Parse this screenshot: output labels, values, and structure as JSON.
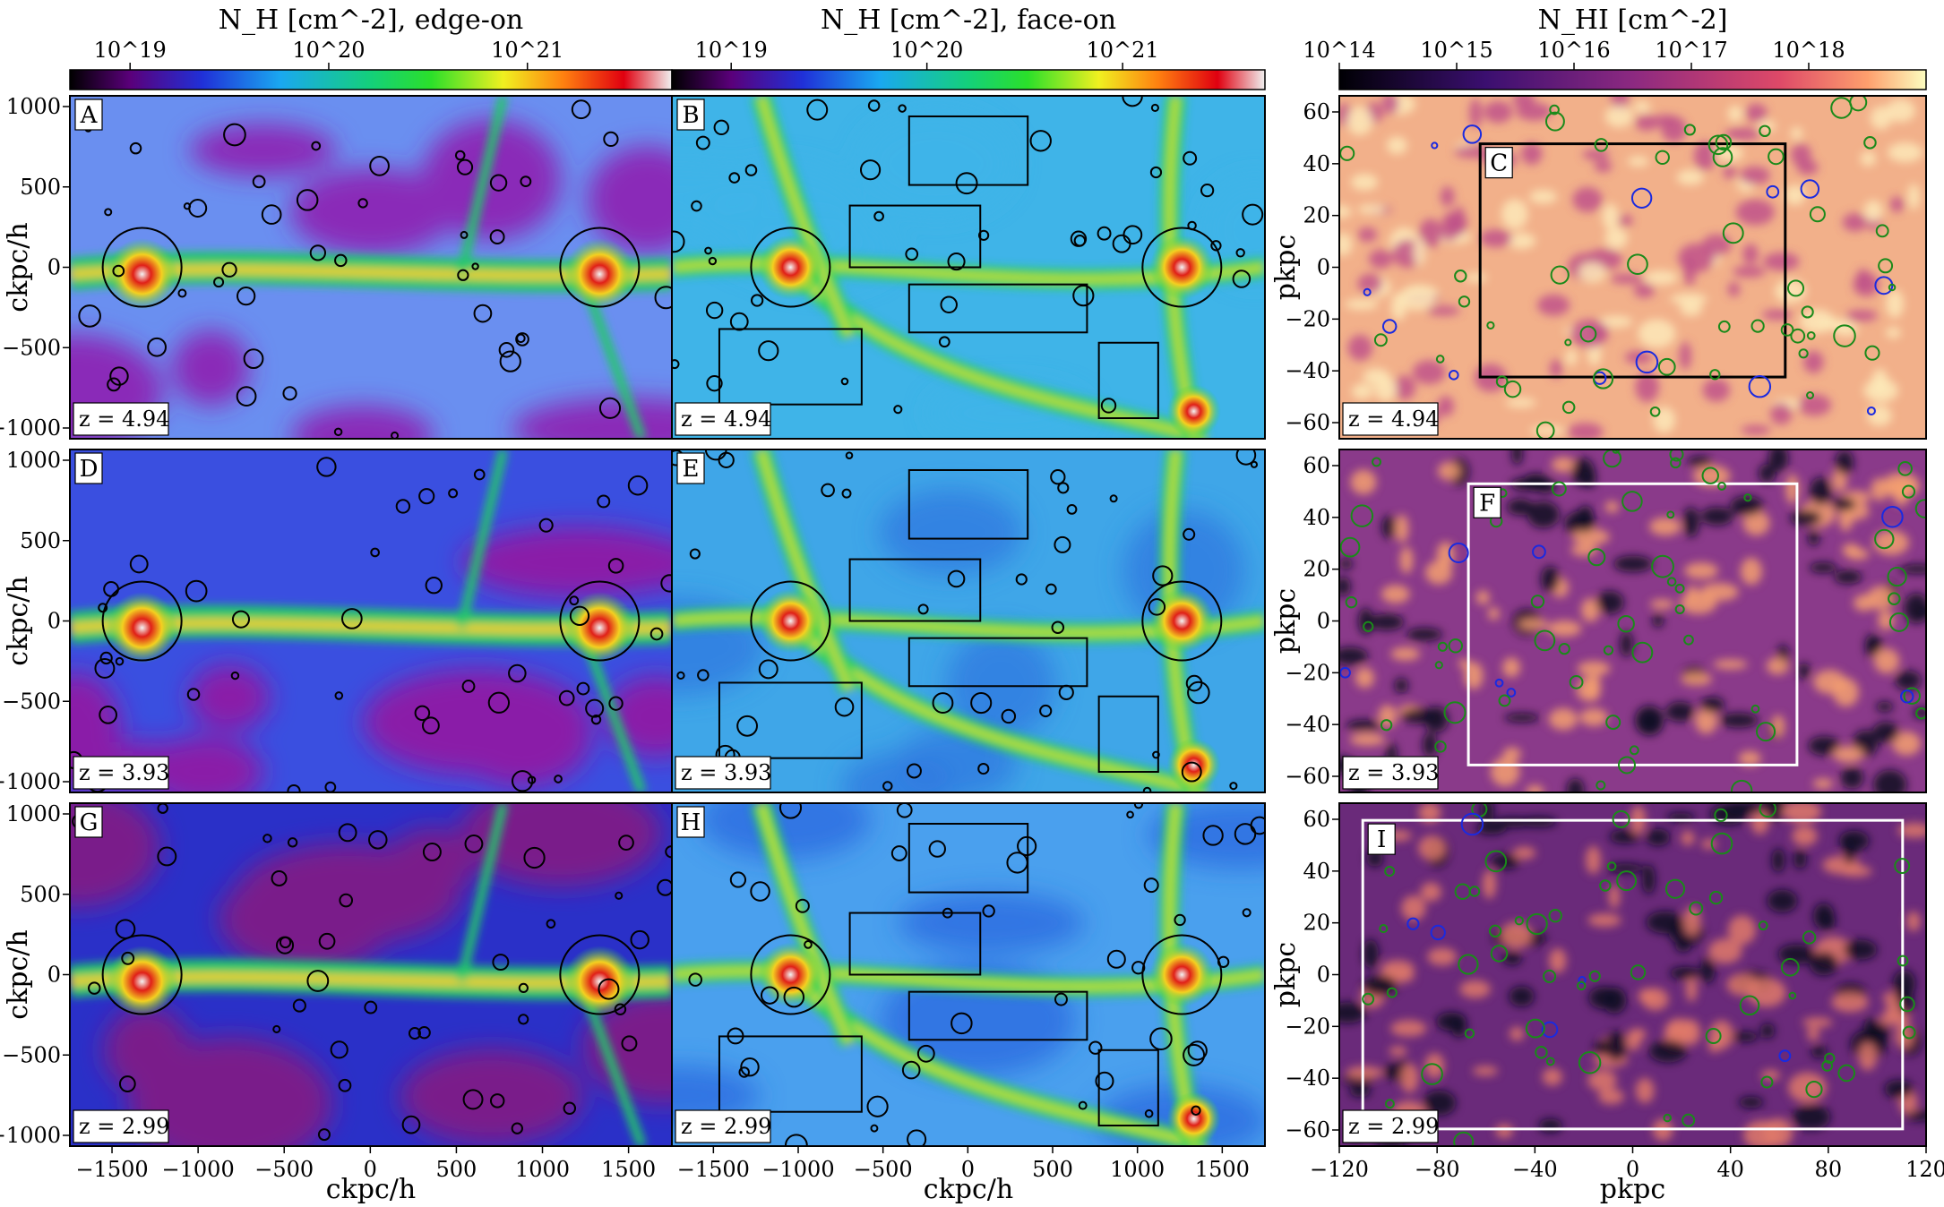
{
  "colorbars": [
    {
      "title": "N_H [cm^-2], edge-on",
      "ticks": [
        "10^19",
        "10^20",
        "10^21"
      ]
    },
    {
      "title": "N_H [cm^-2], face-on",
      "ticks": [
        "10^19",
        "10^20",
        "10^21"
      ]
    },
    {
      "title": "N_HI [cm^-2]",
      "ticks": [
        "10^14",
        "10^15",
        "10^16",
        "10^17",
        "10^18"
      ]
    }
  ],
  "axes": {
    "ckpc_ylabel": "ckpc/h",
    "ckpc_xlabel": "ckpc/h",
    "pkpc_ylabel": "pkpc",
    "pkpc_xlabel": "pkpc",
    "ckpc_xticks": [
      "−1500",
      "−1000",
      "−500",
      "0",
      "500",
      "1000",
      "1500"
    ],
    "ckpc_yticks": [
      "1000",
      "500",
      "0",
      "−500",
      "−1000"
    ],
    "pkpc_xticks": [
      "−120",
      "−80",
      "−40",
      "0",
      "40",
      "80",
      "120"
    ],
    "pkpc_yticks": [
      "60",
      "40",
      "20",
      "0",
      "−20",
      "−40",
      "−60"
    ]
  },
  "panels": [
    {
      "letter": "A",
      "z": "z = 4.94",
      "kind": "edge",
      "colors": {
        "bg": "#6a8ff0",
        "void": "#8a2bb8",
        "fil": "#22c86a"
      }
    },
    {
      "letter": "B",
      "z": "z = 4.94",
      "kind": "face",
      "colors": {
        "bg": "#3fb4e8",
        "void": "#3fb4e8",
        "fil": "#2fd35a"
      }
    },
    {
      "letter": "C",
      "z": "z = 4.94",
      "kind": "hi",
      "colors": {
        "bg": "#f2b08a",
        "void": "#c0528a",
        "fil": "#fde9b8"
      }
    },
    {
      "letter": "D",
      "z": "z = 3.93",
      "kind": "edge",
      "colors": {
        "bg": "#3a4fe0",
        "void": "#8a1fa8",
        "fil": "#22c86a"
      }
    },
    {
      "letter": "E",
      "z": "z = 3.93",
      "kind": "face",
      "colors": {
        "bg": "#3fa6e8",
        "void": "#2f7be0",
        "fil": "#2fd35a"
      }
    },
    {
      "letter": "F",
      "z": "z = 3.93",
      "kind": "hi",
      "colors": {
        "bg": "#8a3a8a",
        "void": "#120a20",
        "fil": "#f5a070"
      }
    },
    {
      "letter": "G",
      "z": "z = 2.99",
      "kind": "edge",
      "colors": {
        "bg": "#2a30c8",
        "void": "#7a1d8a",
        "fil": "#22c86a"
      }
    },
    {
      "letter": "H",
      "z": "z = 2.99",
      "kind": "face",
      "colors": {
        "bg": "#4aa0ee",
        "void": "#2a6ae0",
        "fil": "#2fd35a"
      }
    },
    {
      "letter": "I",
      "z": "z = 2.99",
      "kind": "hi",
      "colors": {
        "bg": "#6a2a7a",
        "void": "#0d0820",
        "fil": "#e07a6a"
      }
    }
  ]
}
